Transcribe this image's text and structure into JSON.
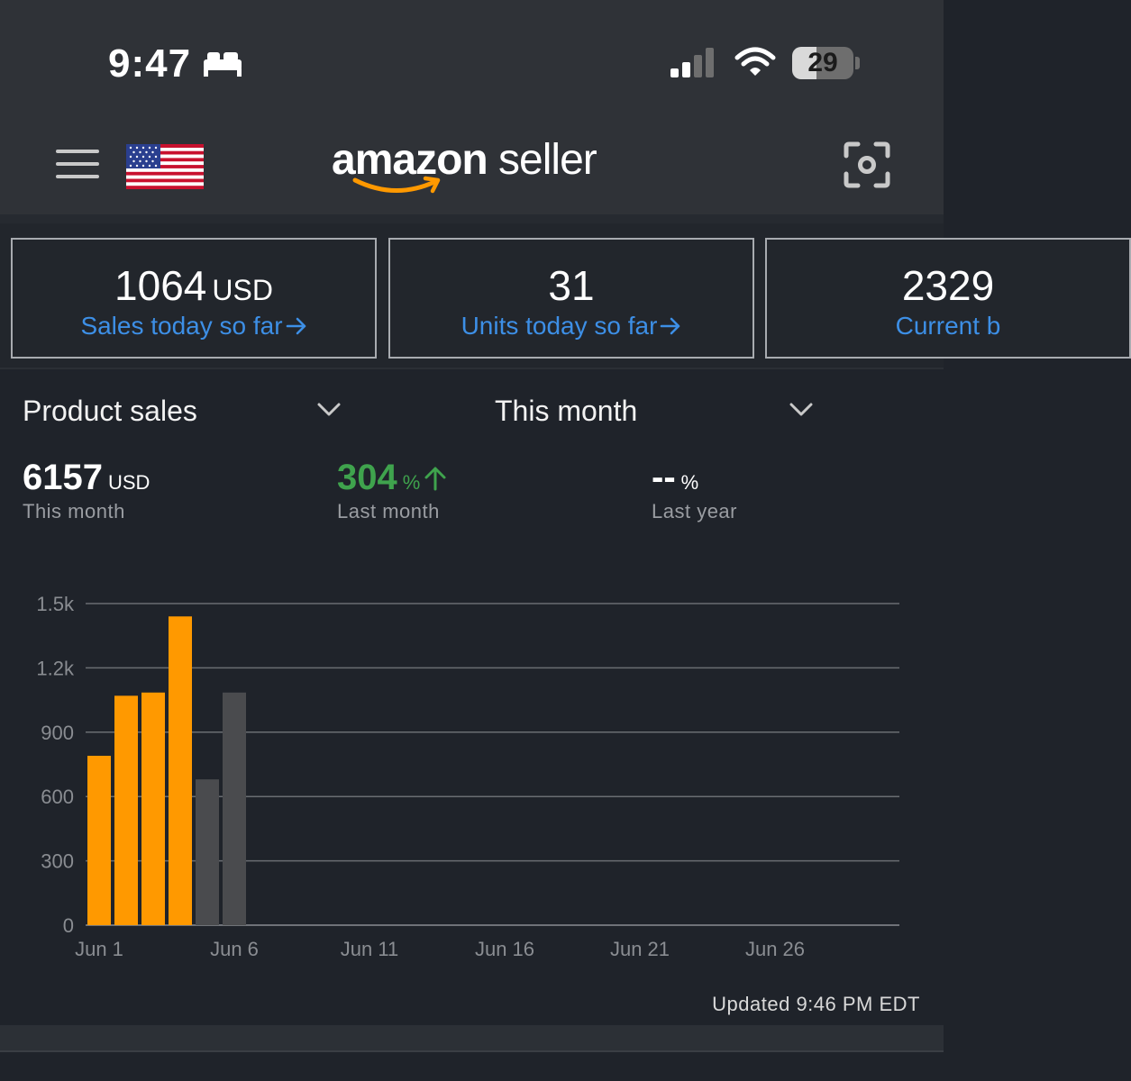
{
  "status_bar": {
    "time": "9:47",
    "battery": "29"
  },
  "header": {
    "logo_bold": "amazon",
    "logo_light": " seller"
  },
  "cards": [
    {
      "value": "1064",
      "unit": "USD",
      "label": "Sales today so far"
    },
    {
      "value": "31",
      "unit": "",
      "label": "Units today so far"
    },
    {
      "value": "2329",
      "unit": "",
      "label": "Current b"
    }
  ],
  "filters": {
    "metric": "Product sales",
    "period": "This month"
  },
  "stats": [
    {
      "value": "6157",
      "unit": "USD",
      "label": "This month"
    },
    {
      "value": "304",
      "unit": "%",
      "label": "Last month",
      "trend": "up"
    },
    {
      "value": "--",
      "unit": "%",
      "label": "Last year"
    }
  ],
  "chart_data": {
    "type": "bar",
    "x_tick_labels": [
      "Jun 1",
      "Jun 6",
      "Jun 11",
      "Jun 16",
      "Jun 21",
      "Jun 26"
    ],
    "y_tick_labels": [
      "0",
      "300",
      "600",
      "900",
      "1.2k",
      "1.5k"
    ],
    "ylim": [
      0,
      1500
    ],
    "days_in_month": 30,
    "grid": true,
    "series": [
      {
        "values": [
          {
            "day": 1,
            "value": 790,
            "color": "#ff9900"
          },
          {
            "day": 2,
            "value": 1070,
            "color": "#ff9900"
          },
          {
            "day": 3,
            "value": 1085,
            "color": "#ff9900"
          },
          {
            "day": 4,
            "value": 1440,
            "color": "#ff9900"
          },
          {
            "day": 5,
            "value": 680,
            "color": "#4a4b4e"
          },
          {
            "day": 6,
            "value": 1085,
            "color": "#4a4b4e"
          }
        ]
      }
    ]
  },
  "footer": {
    "updated": "Updated 9:46 PM EDT"
  },
  "colors": {
    "accent": "#ff9900",
    "link": "#3d8fe6",
    "positive": "#3fa34d"
  }
}
